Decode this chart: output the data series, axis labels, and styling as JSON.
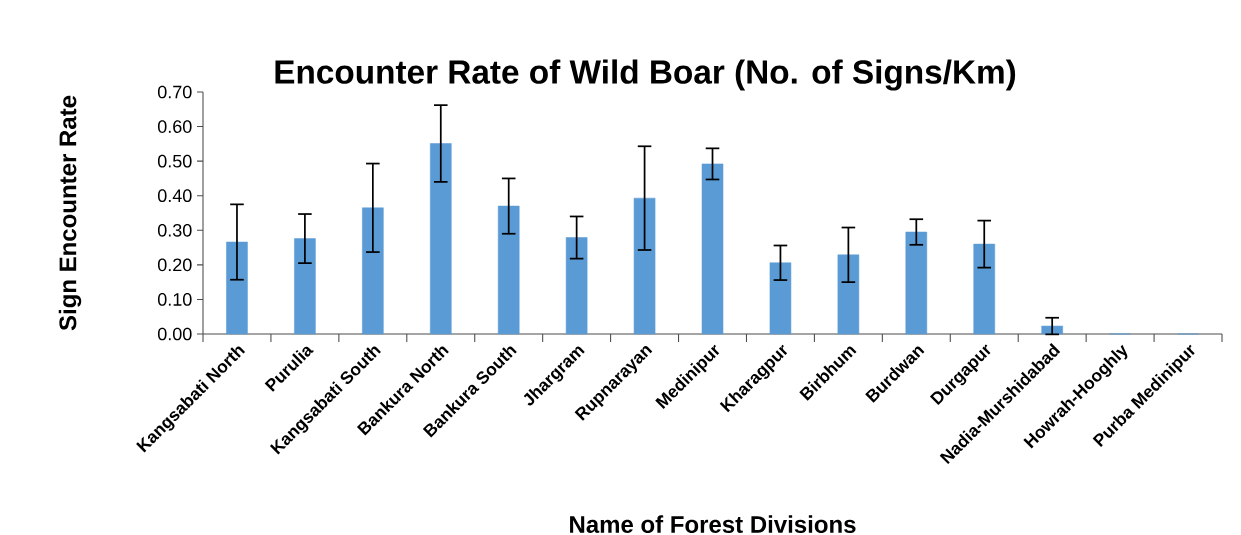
{
  "chart_data": {
    "type": "bar",
    "title": "Encounter Rate of Wild Boar (No. of Signs/Km)",
    "xlabel": "Name of Forest Divisions",
    "ylabel": "Sign Encounter Rate",
    "categories": [
      "Kangsabati North",
      "Purulia",
      "Kangsabati South",
      "Bankura North",
      "Bankura South",
      "Jhargram",
      "Rupnarayan",
      "Medinipur",
      "Kharagpur",
      "Birbhum",
      "Burdwan",
      "Durgapur",
      "Nadia-Murshidabad",
      "Howrah-Hooghly",
      "Purba Medinipur"
    ],
    "values": [
      0.266,
      0.276,
      0.365,
      0.551,
      0.37,
      0.279,
      0.393,
      0.492,
      0.206,
      0.229,
      0.295,
      0.26,
      0.023,
      0,
      0
    ],
    "errors": [
      0.109,
      0.071,
      0.128,
      0.111,
      0.08,
      0.061,
      0.15,
      0.045,
      0.05,
      0.079,
      0.037,
      0.068,
      0.024,
      null,
      null
    ],
    "color": "#5b9bd5",
    "ylim": [
      0,
      0.7
    ],
    "yticks": [
      {
        "value": 0,
        "label": "0.00"
      },
      {
        "value": 0.1,
        "label": "0.10"
      },
      {
        "value": 0.2,
        "label": "0.20"
      },
      {
        "value": 0.3,
        "label": "0.30"
      },
      {
        "value": 0.4,
        "label": "0.40"
      },
      {
        "value": 0.5,
        "label": "0.50"
      },
      {
        "value": 0.6,
        "label": "0.60"
      },
      {
        "value": 0.7,
        "label": "0.70"
      }
    ],
    "grid": false
  }
}
